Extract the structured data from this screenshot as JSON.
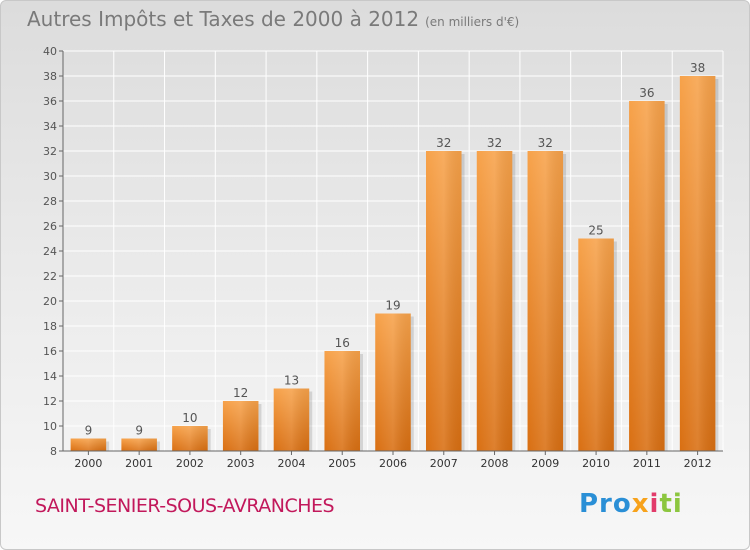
{
  "chart_data": {
    "type": "bar",
    "title": "Autres Impôts et Taxes de 2000 à 2012",
    "subtitle": "(en milliers d'€)",
    "categories": [
      "2000",
      "2001",
      "2002",
      "2003",
      "2004",
      "2005",
      "2006",
      "2007",
      "2008",
      "2009",
      "2010",
      "2011",
      "2012"
    ],
    "values": [
      9,
      9,
      10,
      12,
      13,
      16,
      19,
      32,
      32,
      32,
      25,
      36,
      38
    ],
    "ylim": [
      8,
      40
    ],
    "yticks": [
      8,
      10,
      12,
      14,
      16,
      18,
      20,
      22,
      24,
      26,
      28,
      30,
      32,
      34,
      36,
      38,
      40
    ],
    "grid": true,
    "bar_color": "#f08a24"
  },
  "footer": {
    "commune": "SAINT-SENIER-SOUS-AVRANCHES",
    "logo": [
      "Pro",
      "x",
      "i",
      "ti"
    ]
  },
  "colors": {
    "commune_text": "#c2185b",
    "title_text": "#7a7a7a"
  }
}
